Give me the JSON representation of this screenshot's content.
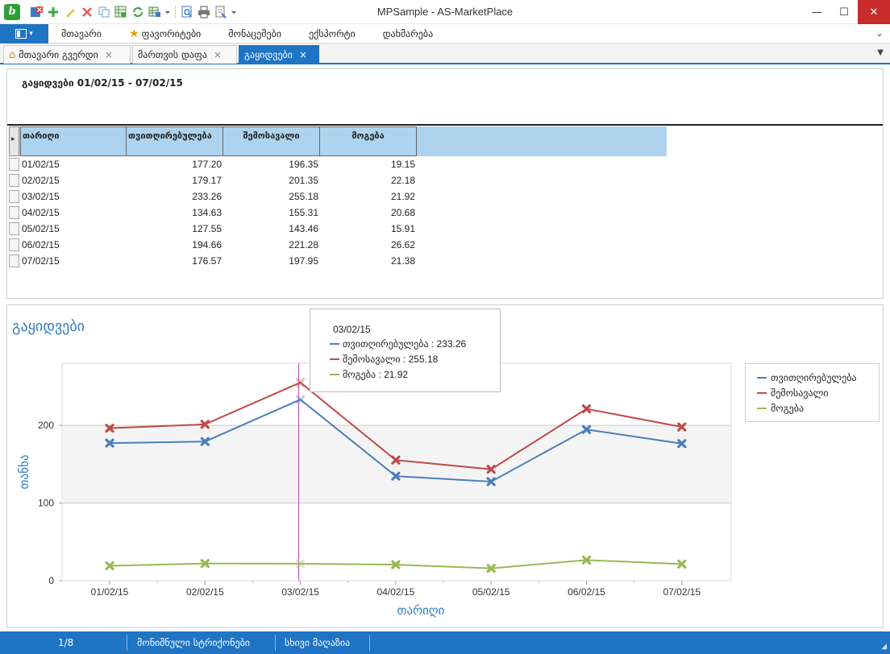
{
  "window": {
    "title": "MPSample - AS-MarketPlace",
    "app_icon_letter": "b"
  },
  "quick_access": [
    "close-doc-icon",
    "add-icon",
    "edit-icon",
    "delete-icon",
    "copy-icon",
    "grid-refresh-icon",
    "refresh-icon",
    "export-icon",
    "preview-icon",
    "print-icon",
    "print-preview-icon",
    "dropdown-arrow-icon"
  ],
  "menu": {
    "items": [
      {
        "label": "მთავარი"
      },
      {
        "label": "ფავორიტები",
        "icon": "star-icon"
      },
      {
        "label": "მონაცემები"
      },
      {
        "label": "ექსპორტი"
      },
      {
        "label": "დახმარება"
      }
    ]
  },
  "tabs": [
    {
      "label": "მთავარი გვერდი",
      "close": "×"
    },
    {
      "label": "მართვის დაფა",
      "close": "×"
    },
    {
      "label": "გაყიდვები",
      "close": "×",
      "active": true
    }
  ],
  "report": {
    "title": "გაყიდვები  01/02/15 - 07/02/15",
    "columns": [
      "თარიღი",
      "თვითღირებულება",
      "შემოსავალი",
      "მოგება"
    ],
    "rows": [
      [
        "01/02/15",
        "177.20",
        "196.35",
        "19.15"
      ],
      [
        "02/02/15",
        "179.17",
        "201.35",
        "22.18"
      ],
      [
        "03/02/15",
        "233.26",
        "255.18",
        "21.92"
      ],
      [
        "04/02/15",
        "134.63",
        "155.31",
        "20.68"
      ],
      [
        "05/02/15",
        "127.55",
        "143.46",
        "15.91"
      ],
      [
        "06/02/15",
        "194.66",
        "221.28",
        "26.62"
      ],
      [
        "07/02/15",
        "176.57",
        "197.95",
        "21.38"
      ]
    ]
  },
  "chart": {
    "title": "გაყიდვები",
    "tooltip": {
      "date": "03/02/15",
      "lines": [
        "თვითღირებულება : 233.26",
        "შემოსავალი : 255.18",
        "მოგება : 21.92"
      ]
    },
    "legend": [
      "თვითღირებულება",
      "შემოსავალი",
      "მოგება"
    ]
  },
  "chart_data": {
    "type": "line",
    "title": "გაყიდვები",
    "xlabel": "თარიღი",
    "ylabel": "თანხა",
    "categories": [
      "01/02/15",
      "02/02/15",
      "03/02/15",
      "04/02/15",
      "05/02/15",
      "06/02/15",
      "07/02/15"
    ],
    "ylim": [
      0,
      280
    ],
    "yticks": [
      0,
      100,
      200
    ],
    "series": [
      {
        "name": "თვითღირებულება",
        "color": "#4a7ebb",
        "values": [
          177.2,
          179.17,
          233.26,
          134.63,
          127.55,
          194.66,
          176.57
        ]
      },
      {
        "name": "შემოსავალი",
        "color": "#be4b48",
        "values": [
          196.35,
          201.35,
          255.18,
          155.31,
          143.46,
          221.28,
          197.95
        ]
      },
      {
        "name": "მოგება",
        "color": "#98b954",
        "values": [
          19.15,
          22.18,
          21.92,
          20.68,
          15.91,
          26.62,
          21.38
        ]
      }
    ],
    "highlight_index": 2,
    "highlight_color": "#c23bc0",
    "legend_position": "right",
    "grid": true
  },
  "status": {
    "position": "1/8",
    "monitored_strings": "მონიშნული სტრიქონები",
    "other": "სხივი მაღაზია"
  }
}
